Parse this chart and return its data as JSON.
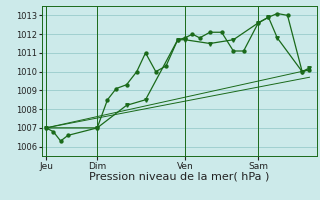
{
  "background_color": "#cceaea",
  "grid_color": "#99cccc",
  "line_color": "#1a6a1a",
  "xlabel": "Pression niveau de la mer( hPa )",
  "xlabel_fontsize": 8,
  "ylim": [
    1005.5,
    1013.5
  ],
  "yticks": [
    1006,
    1007,
    1008,
    1009,
    1010,
    1011,
    1012,
    1013
  ],
  "day_labels": [
    "Jeu",
    "Dim",
    "Ven",
    "Sam"
  ],
  "day_positions": [
    0,
    3.5,
    9.5,
    14.5
  ],
  "xlim": [
    -0.3,
    18.5
  ],
  "series1_x": [
    0,
    0.5,
    1.0,
    1.5,
    3.5,
    4.2,
    4.8,
    5.5,
    6.2,
    6.8,
    7.5,
    8.2,
    9.0,
    9.5,
    10.0,
    10.5,
    11.2,
    12.0,
    12.8,
    13.5,
    14.5,
    15.2,
    15.8,
    16.5,
    17.5,
    18.0
  ],
  "series1_y": [
    1007.0,
    1006.8,
    1006.3,
    1006.6,
    1007.0,
    1008.5,
    1009.1,
    1009.3,
    1010.0,
    1011.0,
    1010.0,
    1010.3,
    1011.7,
    1011.8,
    1012.0,
    1011.8,
    1012.1,
    1012.1,
    1011.1,
    1011.1,
    1012.6,
    1012.9,
    1013.1,
    1013.0,
    1010.0,
    1010.1
  ],
  "series2_x": [
    0,
    3.5,
    5.5,
    6.8,
    9.0,
    9.5,
    11.2,
    12.8,
    14.5,
    15.2,
    15.8,
    17.5,
    18.0
  ],
  "series2_y": [
    1007.0,
    1007.0,
    1008.2,
    1008.5,
    1011.7,
    1011.7,
    1011.5,
    1011.7,
    1012.6,
    1012.9,
    1011.8,
    1010.0,
    1010.2
  ],
  "series3_x": [
    0,
    18.0
  ],
  "series3_y": [
    1007.0,
    1010.1
  ],
  "series4_x": [
    0,
    18.0
  ],
  "series4_y": [
    1007.0,
    1009.7
  ]
}
